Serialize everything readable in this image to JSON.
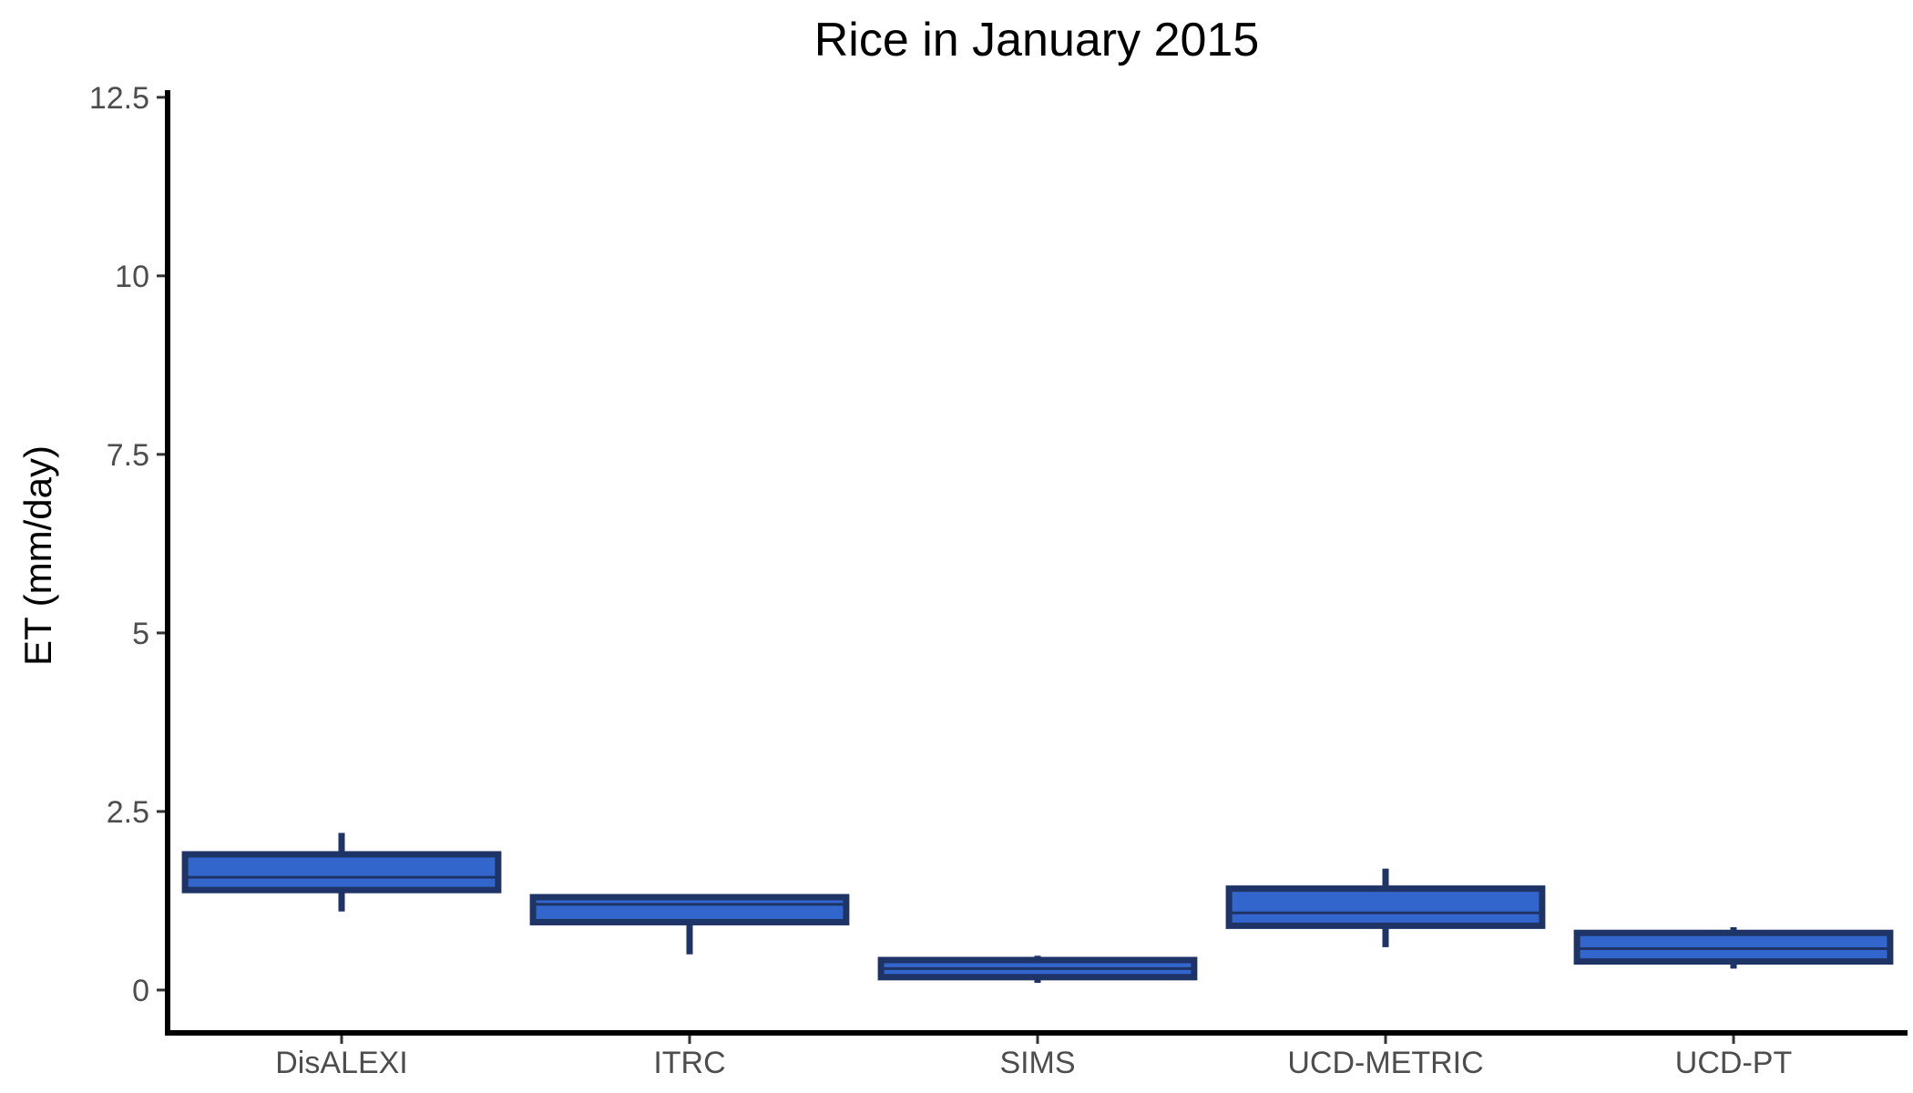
{
  "chart_data": {
    "type": "box",
    "title": "Rice in January 2015",
    "xlabel": "",
    "ylabel": "ET (mm/day)",
    "ylim": [
      -0.6,
      12.6
    ],
    "yticks": [
      0,
      2.5,
      5,
      7.5,
      10,
      12.5
    ],
    "ytick_labels": [
      "0",
      "2.5",
      "5",
      "7.5",
      "10",
      "12.5"
    ],
    "categories": [
      "DisALEXI",
      "ITRC",
      "SIMS",
      "UCD-METRIC",
      "UCD-PT"
    ],
    "boxes": [
      {
        "category": "DisALEXI",
        "min": 1.1,
        "q1": 1.4,
        "median": 1.58,
        "q3": 1.9,
        "max": 2.2
      },
      {
        "category": "ITRC",
        "min": 0.5,
        "q1": 0.95,
        "median": 1.2,
        "q3": 1.3,
        "max": 1.3
      },
      {
        "category": "SIMS",
        "min": 0.1,
        "q1": 0.18,
        "median": 0.3,
        "q3": 0.42,
        "max": 0.48
      },
      {
        "category": "UCD-METRIC",
        "min": 0.6,
        "q1": 0.9,
        "median": 1.08,
        "q3": 1.42,
        "max": 1.7
      },
      {
        "category": "UCD-PT",
        "min": 0.3,
        "q1": 0.4,
        "median": 0.58,
        "q3": 0.8,
        "max": 0.88
      }
    ],
    "box_fill": "#3366cc",
    "box_stroke": "#1f3466",
    "grid": false,
    "legend": "none"
  }
}
